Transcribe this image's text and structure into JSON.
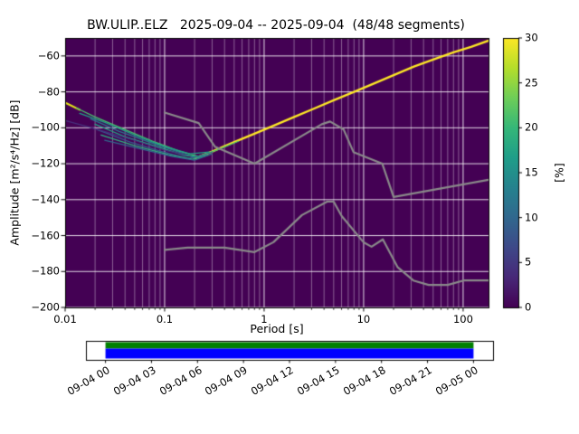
{
  "chart_data": {
    "type": "heatmap",
    "title": "BW.ULIP..ELZ   2025-09-04 -- 2025-09-04  (48/48 segments)",
    "xlabel": "Period [s]",
    "ylabel": "Amplitude [m²/s⁴/Hz] [dB]",
    "xscale": "log",
    "xlim": [
      0.01,
      180
    ],
    "ylim": [
      -200,
      -50
    ],
    "xticks": [
      0.01,
      0.1,
      1,
      10,
      100
    ],
    "xtick_labels": [
      "0.01",
      "0.1",
      "1",
      "10",
      "100"
    ],
    "yticks": [
      -60,
      -80,
      -100,
      -120,
      -140,
      -160,
      -180,
      -200
    ],
    "ytick_labels": [
      "−60",
      "−80",
      "−100",
      "−120",
      "−140",
      "−160",
      "−180",
      "−200"
    ],
    "background_color": "#440154",
    "grid": true,
    "colorbar": {
      "label": "[%]",
      "min": 0,
      "max": 30,
      "ticks": [
        0,
        5,
        10,
        15,
        20,
        25,
        30
      ],
      "tick_labels": [
        "0",
        "5",
        "10",
        "15",
        "20",
        "25",
        "30"
      ],
      "colormap": "viridis",
      "stops": [
        "#440154",
        "#482878",
        "#3e4989",
        "#31688e",
        "#26828e",
        "#1f9e89",
        "#35b779",
        "#6ece58",
        "#b5de2b",
        "#fde725"
      ]
    },
    "psd_lines": [
      {
        "color": "#fde725",
        "width": 2.4,
        "points": [
          [
            0.2,
            -117
          ],
          [
            0.3,
            -113.2
          ],
          [
            0.5,
            -108
          ],
          [
            0.8,
            -103.3
          ],
          [
            1.3,
            -98.4
          ],
          [
            2,
            -94
          ],
          [
            3,
            -89.9
          ],
          [
            5,
            -84.7
          ],
          [
            8,
            -80
          ],
          [
            13,
            -75.1
          ],
          [
            20,
            -70.7
          ],
          [
            32,
            -65.9
          ],
          [
            50,
            -62
          ],
          [
            80,
            -58
          ],
          [
            120,
            -55
          ],
          [
            180,
            -51.5
          ]
        ]
      },
      {
        "color": "#e2e418",
        "width": 2,
        "points": [
          [
            0.01,
            -86
          ],
          [
            0.014,
            -90
          ]
        ]
      },
      {
        "color": "#4ac16d",
        "width": 1.3,
        "points": [
          [
            0.013,
            -89
          ],
          [
            0.02,
            -94
          ],
          [
            0.04,
            -101
          ],
          [
            0.08,
            -108
          ],
          [
            0.14,
            -113
          ],
          [
            0.22,
            -116
          ],
          [
            0.35,
            -112
          ],
          [
            0.55,
            -107.5
          ]
        ]
      },
      {
        "color": "#2a788e",
        "width": 1.3,
        "points": [
          [
            0.018,
            -95
          ],
          [
            0.035,
            -102
          ],
          [
            0.07,
            -108
          ],
          [
            0.13,
            -113
          ],
          [
            0.2,
            -116.5
          ],
          [
            0.3,
            -113.5
          ]
        ]
      },
      {
        "color": "#22a884",
        "width": 1.3,
        "points": [
          [
            0.02,
            -98
          ],
          [
            0.04,
            -105
          ],
          [
            0.09,
            -111
          ],
          [
            0.16,
            -115.5
          ],
          [
            0.25,
            -116
          ]
        ]
      },
      {
        "color": "#365c8d",
        "width": 1.3,
        "points": [
          [
            0.021,
            -101
          ],
          [
            0.045,
            -108
          ],
          [
            0.09,
            -113
          ],
          [
            0.17,
            -117
          ],
          [
            0.26,
            -115.5
          ]
        ]
      },
      {
        "color": "#2db27d",
        "width": 1.3,
        "points": [
          [
            0.023,
            -104
          ],
          [
            0.05,
            -110
          ],
          [
            0.11,
            -115
          ],
          [
            0.19,
            -117.5
          ],
          [
            0.28,
            -115
          ]
        ]
      },
      {
        "color": "#31688e",
        "width": 1.3,
        "points": [
          [
            0.025,
            -107
          ],
          [
            0.06,
            -112
          ],
          [
            0.12,
            -116
          ],
          [
            0.2,
            -118
          ],
          [
            0.3,
            -114.5
          ]
        ]
      },
      {
        "color": "#1fa187",
        "width": 1.3,
        "points": [
          [
            0.014,
            -92
          ],
          [
            0.025,
            -97
          ],
          [
            0.05,
            -104
          ],
          [
            0.1,
            -110.5
          ],
          [
            0.18,
            -114.5
          ],
          [
            0.28,
            -113.5
          ]
        ]
      },
      {
        "color": "#46327e",
        "width": 1.2,
        "points": [
          [
            0.01,
            -96
          ],
          [
            0.02,
            -100.5
          ],
          [
            0.05,
            -107
          ],
          [
            0.1,
            -112.5
          ],
          [
            0.16,
            -115
          ]
        ]
      }
    ],
    "noise_models": {
      "color": "#8a8a8a",
      "high": [
        [
          0.1,
          -91.5
        ],
        [
          0.22,
          -97.4
        ],
        [
          0.32,
          -110.5
        ],
        [
          0.8,
          -120
        ],
        [
          3.8,
          -98
        ],
        [
          4.6,
          -96.5
        ],
        [
          6.3,
          -101
        ],
        [
          7.9,
          -113.5
        ],
        [
          15.4,
          -120
        ],
        [
          20,
          -138.5
        ],
        [
          180,
          -129
        ]
      ],
      "low": [
        [
          0.1,
          -168
        ],
        [
          0.17,
          -166.7
        ],
        [
          0.4,
          -166.7
        ],
        [
          0.8,
          -169.2
        ],
        [
          1.24,
          -163.7
        ],
        [
          2.4,
          -148.6
        ],
        [
          4.3,
          -141.1
        ],
        [
          5,
          -141.1
        ],
        [
          6,
          -149
        ],
        [
          10,
          -163.8
        ],
        [
          12,
          -166.2
        ],
        [
          15.6,
          -162.1
        ],
        [
          21.9,
          -177.5
        ],
        [
          31.6,
          -185
        ],
        [
          45,
          -187.5
        ],
        [
          70,
          -187.5
        ],
        [
          101,
          -185
        ],
        [
          180,
          -185
        ]
      ]
    }
  },
  "timeline": {
    "labels": [
      "09-04 00",
      "09-04 03",
      "09-04 06",
      "09-04 09",
      "09-04 12",
      "09-04 15",
      "09-04 18",
      "09-04 21",
      "09-05 00"
    ],
    "data_color": "#008000",
    "psd_color": "#0000ff",
    "coverage": {
      "start": 0.048,
      "end": 0.952
    }
  }
}
